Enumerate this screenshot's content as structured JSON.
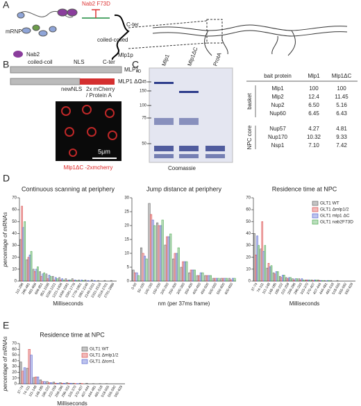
{
  "panel_labels": [
    "A",
    "B",
    "C",
    "D",
    "E"
  ],
  "panel_a": {
    "labels": [
      "mRNP",
      "Nab2",
      "Nab2 F73D",
      "C-ter",
      "coiled-coiled",
      "Mlp1p"
    ]
  },
  "panel_b": {
    "labels": [
      "coiled-coil",
      "NLS",
      "C-ter",
      "MLP1",
      "MLP1 ΔC",
      "newNLS",
      "2x mCherry",
      "/ Protein A",
      "5μm",
      "Mlp1ΔC -2xmcherry"
    ]
  },
  "panel_c": {
    "kd": "kD",
    "markers": [
      "245",
      "150",
      "100",
      "75",
      "50"
    ],
    "lanes": [
      "Mlp1",
      "Mlp1ΔC",
      "ProtA"
    ],
    "caption": "Coomassie",
    "table": {
      "header": [
        "bait protein",
        "Mlp1",
        "Mlp1ΔC"
      ],
      "groups": [
        {
          "name": "basket",
          "rows": [
            [
              "Mlp1",
              "100",
              "100"
            ],
            [
              "Mlp2",
              "12.4",
              "11.45"
            ],
            [
              "Nup2",
              "6.50",
              "5.16"
            ],
            [
              "Nup60",
              "6.45",
              "6.43"
            ]
          ]
        },
        {
          "name": "NPC core",
          "rows": [
            [
              "Nup57",
              "4.27",
              "4.81"
            ],
            [
              "Nup170",
              "10.32",
              "9.33"
            ],
            [
              "Nsp1",
              "7.10",
              "7.42"
            ]
          ]
        }
      ]
    }
  },
  "chart_data": [
    {
      "type": "bar",
      "title": "Continuous scanning at periphery",
      "ylabel": "percentage of mRNAs",
      "xlabel": "Milliseconds",
      "categories": [
        "111-296",
        "296-481",
        "481-666",
        "666-851",
        "851-1036",
        "1036-1221",
        "1221-1406",
        "1406-1591",
        "1591-1776",
        "1776-1961",
        "1961-2146",
        "2146-2331",
        "2331-2516",
        "2516-2701",
        "2701-2886"
      ],
      "ylim": [
        0,
        70
      ],
      "yticks": [
        0,
        10,
        20,
        30,
        40,
        50,
        60,
        70
      ],
      "series": [
        {
          "name": "GLT1 WT",
          "color": "#555555",
          "values": [
            35,
            18,
            10,
            8,
            6,
            4,
            3,
            2,
            2,
            1,
            1,
            1,
            0.5,
            0.5,
            0.5
          ]
        },
        {
          "name": "GLT1 Δmlp1/2",
          "color": "#d83a3a",
          "values": [
            63,
            20,
            8,
            4,
            2,
            1,
            1,
            0.5,
            0.5,
            0,
            0,
            0,
            0,
            0,
            0
          ]
        },
        {
          "name": "GLT1 mlp1 ΔC",
          "color": "#4455cc",
          "values": [
            45,
            22,
            10,
            6,
            5,
            3,
            2,
            1,
            1,
            1,
            0.5,
            0.5,
            0,
            0,
            0
          ]
        },
        {
          "name": "GLT1 nab2F73D",
          "color": "#3aa040",
          "values": [
            50,
            25,
            12,
            7,
            4,
            2,
            1,
            1,
            0.5,
            0.5,
            0,
            0,
            0,
            0,
            0
          ]
        }
      ]
    },
    {
      "type": "bar",
      "title": "Jump distance at periphery",
      "xlabel": "nm (per 37ms frame)",
      "categories": [
        "0-50",
        "50-100",
        "100-150",
        "150-200",
        "200-250",
        "250-300",
        "300-350",
        "350-400",
        "400-450",
        "450-500",
        "500-550",
        "550-600",
        "600-650"
      ],
      "ylim": [
        0,
        30
      ],
      "yticks": [
        0,
        5,
        10,
        15,
        20,
        25,
        30
      ],
      "series": [
        {
          "name": "GLT1 WT",
          "color": "#555555",
          "values": [
            4,
            12,
            28,
            21,
            13,
            8,
            5,
            3,
            2,
            2,
            1,
            1,
            1
          ]
        },
        {
          "name": "GLT1 Δmlp1/2",
          "color": "#d83a3a",
          "values": [
            3,
            10,
            24,
            20,
            16,
            10,
            7,
            4,
            2,
            2,
            1,
            1,
            0.5
          ]
        },
        {
          "name": "GLT1 mlp1 ΔC",
          "color": "#4455cc",
          "values": [
            3,
            9,
            22,
            20,
            16,
            10,
            7,
            4,
            3,
            2,
            1,
            1,
            1
          ]
        },
        {
          "name": "GLT1 nab2F73D",
          "color": "#3aa040",
          "values": [
            2,
            8,
            20,
            22,
            17,
            12,
            7,
            4,
            3,
            2,
            1,
            1,
            1
          ]
        }
      ]
    },
    {
      "type": "bar",
      "title": "Residence time at NPC",
      "xlabel": "Milliseconds",
      "legend": "upper right",
      "categories": [
        "37-74",
        "74-111",
        "111-148",
        "148-185",
        "185-222",
        "222-259",
        "259-296",
        "296-333",
        "333-370",
        "370-407",
        "407-444",
        "444-481",
        "481-518",
        "518-555",
        "555-592",
        "592-629"
      ],
      "ylim": [
        0,
        70
      ],
      "yticks": [
        0,
        10,
        20,
        30,
        40,
        50,
        60,
        70
      ],
      "series": [
        {
          "name": "GLT1 WT",
          "color": "#555555",
          "values": [
            40,
            27,
            11,
            7,
            4,
            3,
            2,
            2,
            1,
            1,
            1,
            0.5,
            0.5,
            0.5,
            0,
            0
          ]
        },
        {
          "name": "GLT1 Δmlp1/2",
          "color": "#d83a3a",
          "values": [
            22,
            50,
            15,
            6,
            3,
            2,
            1,
            1,
            1,
            0.5,
            0.5,
            0,
            0,
            0,
            0,
            0
          ]
        },
        {
          "name": "GLT1 mlp1 ΔC",
          "color": "#4455cc",
          "values": [
            38,
            25,
            12,
            8,
            5,
            3,
            2,
            2,
            1,
            1,
            0.5,
            0.5,
            0,
            0,
            0,
            0
          ]
        },
        {
          "name": "GLT1 nab2F73D",
          "color": "#3aa040",
          "values": [
            30,
            30,
            13,
            8,
            5,
            3,
            2,
            1,
            1,
            1,
            0.5,
            0.5,
            0,
            0,
            0,
            0
          ]
        }
      ]
    },
    {
      "type": "bar",
      "title": "Residence time at NPC",
      "ylabel": "percentage of mRNAs",
      "xlabel": "Milliseconds",
      "legend": "upper right",
      "categories": [
        "37-74",
        "74-111",
        "111-148",
        "148-185",
        "185-222",
        "222-259",
        "259-296",
        "296-333",
        "333-370",
        "370-407",
        "407-444",
        "444-481",
        "481-518",
        "518-555",
        "555-592",
        "592-629"
      ],
      "ylim": [
        0,
        70
      ],
      "yticks": [
        0,
        10,
        20,
        30,
        40,
        50,
        60,
        70
      ],
      "series": [
        {
          "name": "GLT1 WT",
          "color": "#555555",
          "values": [
            38,
            27,
            11,
            7,
            4,
            3,
            2,
            2,
            1,
            1,
            1,
            0.5,
            0.5,
            0.5,
            0,
            0
          ]
        },
        {
          "name": "GLT1 Δmlp1/2",
          "color": "#d83a3a",
          "values": [
            22,
            60,
            12,
            4,
            2,
            1,
            1,
            1,
            0.5,
            0.5,
            0,
            0,
            0,
            0,
            0,
            0
          ]
        },
        {
          "name": "GLT1 Δtom1",
          "color": "#4455cc",
          "values": [
            28,
            50,
            12,
            4,
            2,
            1,
            1,
            1,
            0.5,
            0,
            0,
            0,
            0,
            0,
            0,
            0
          ]
        }
      ]
    }
  ]
}
